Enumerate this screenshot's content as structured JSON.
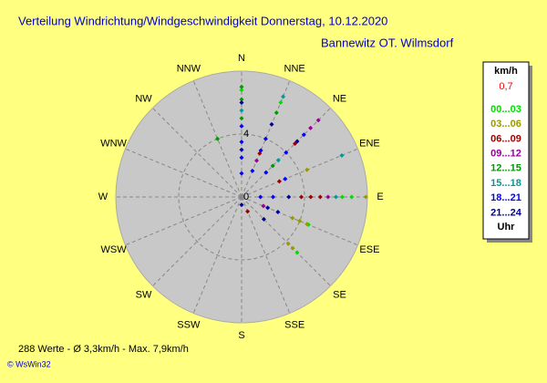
{
  "chart_data": {
    "type": "polar-scatter",
    "title": "Verteilung Windrichtung/Windgeschwindigkeit  Donnerstag, 10.12.2020",
    "subtitle": "Bannewitz OT. Wilmsdorf",
    "footer": "288 Werte   -   Ø 3,3km/h  -  Max. 7,9km/h",
    "credit": "© WsWin32",
    "legend_title": "km/h",
    "calm": {
      "value": 0.7,
      "label": "0,7"
    },
    "legend_footer": "Uhr",
    "xlim": [
      0,
      360
    ],
    "xticks": [
      {
        "value": 0,
        "label": "N"
      },
      {
        "value": 22.5,
        "label": "NNE"
      },
      {
        "value": 45,
        "label": "NE"
      },
      {
        "value": 67.5,
        "label": "ENE"
      },
      {
        "value": 90,
        "label": "E"
      },
      {
        "value": 112.5,
        "label": "ESE"
      },
      {
        "value": 135,
        "label": "SE"
      },
      {
        "value": 157.5,
        "label": "SSE"
      },
      {
        "value": 180,
        "label": "S"
      },
      {
        "value": 202.5,
        "label": "SSW"
      },
      {
        "value": 225,
        "label": "SW"
      },
      {
        "value": 247.5,
        "label": "WSW"
      },
      {
        "value": 270,
        "label": "W"
      },
      {
        "value": 292.5,
        "label": "WNW"
      },
      {
        "value": 315,
        "label": "NW"
      },
      {
        "value": 337.5,
        "label": "NNW"
      }
    ],
    "ylim": [
      0,
      8
    ],
    "yticks": [
      0,
      4
    ],
    "grid": true,
    "series": [
      {
        "name": "00...03",
        "color": "#00dd00",
        "x": [
          90,
          90,
          112.5,
          135,
          22.5,
          0
        ],
        "values": [
          7.0,
          6.4,
          4.6,
          5.0,
          6.5,
          6.8
        ]
      },
      {
        "name": "03...06",
        "color": "#999900",
        "x": [
          90,
          67.5,
          112.5,
          112.5,
          112.5,
          135,
          135
        ],
        "values": [
          7.9,
          4.5,
          3.5,
          4.0,
          4.5,
          4.2,
          4.6
        ]
      },
      {
        "name": "06...09",
        "color": "#990000",
        "x": [
          90,
          90,
          90,
          67.5,
          45,
          22.5,
          157.5
        ],
        "values": [
          5.0,
          4.4,
          3.8,
          2.6,
          4.8,
          3.0,
          1.0
        ]
      },
      {
        "name": "09...12",
        "color": "#990099",
        "x": [
          90,
          45,
          45,
          22.5,
          112.5
        ],
        "values": [
          5.5,
          6.9,
          6.2,
          2.5,
          1.5
        ]
      },
      {
        "name": "12...15",
        "color": "#009900",
        "x": [
          0,
          0,
          0,
          337.5,
          22.5,
          45
        ],
        "values": [
          7.0,
          6.2,
          5.0,
          4.0,
          5.8,
          2.8
        ]
      },
      {
        "name": "15...18",
        "color": "#009999",
        "x": [
          67.5,
          0,
          22.5,
          90,
          45
        ],
        "values": [
          6.9,
          5.5,
          6.9,
          6.0,
          3.3
        ]
      },
      {
        "name": "18...21",
        "color": "#0000ff",
        "x": [
          0,
          0,
          0,
          0,
          22.5,
          22.5,
          22.5,
          45,
          45,
          45,
          67.5,
          90,
          90
        ],
        "values": [
          4.5,
          3.5,
          2.5,
          1.5,
          4.0,
          3.2,
          1.8,
          5.6,
          4.0,
          2.2,
          3.0,
          2.0,
          1.2
        ]
      },
      {
        "name": "21...24",
        "color": "#000099",
        "x": [
          0,
          0,
          22.5,
          45,
          90,
          112.5,
          112.5,
          135,
          180
        ],
        "values": [
          6.0,
          3.0,
          5.0,
          5.0,
          3.0,
          1.8,
          2.5,
          2.0,
          0.5
        ]
      }
    ]
  }
}
